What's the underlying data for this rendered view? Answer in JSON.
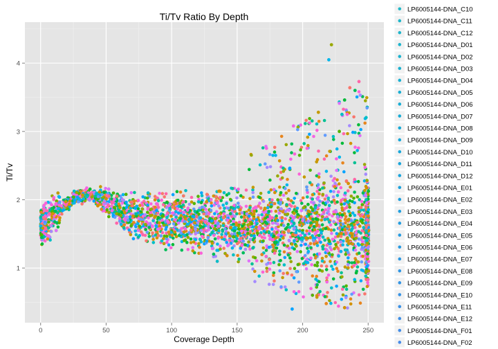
{
  "chart_data": {
    "type": "scatter",
    "title": "Ti/Tv Ratio By Depth",
    "xlabel": "Coverage Depth",
    "ylabel": "Ti/Tv",
    "xlim": [
      -12,
      262
    ],
    "ylim": [
      0.2,
      4.6
    ],
    "x_ticks": [
      0,
      50,
      100,
      150,
      200,
      250
    ],
    "y_ticks": [
      1,
      2,
      3,
      4
    ],
    "grid": true,
    "legend_position": "right",
    "series": [
      {
        "name": "LP6005144-DNA_C10",
        "color": "#22b8c7"
      },
      {
        "name": "LP6005144-DNA_C11",
        "color": "#20b6c9"
      },
      {
        "name": "LP6005144-DNA_C12",
        "color": "#1fb5cb"
      },
      {
        "name": "LP6005144-DNA_D01",
        "color": "#1db4cc"
      },
      {
        "name": "LP6005144-DNA_D02",
        "color": "#1cb2ce"
      },
      {
        "name": "LP6005144-DNA_D03",
        "color": "#1bb1cf"
      },
      {
        "name": "LP6005144-DNA_D04",
        "color": "#1ab0d1"
      },
      {
        "name": "LP6005144-DNA_D05",
        "color": "#1aaed2"
      },
      {
        "name": "LP6005144-DNA_D06",
        "color": "#19add4"
      },
      {
        "name": "LP6005144-DNA_D07",
        "color": "#19abd5"
      },
      {
        "name": "LP6005144-DNA_D08",
        "color": "#19aad6"
      },
      {
        "name": "LP6005144-DNA_D09",
        "color": "#1aa8d8"
      },
      {
        "name": "LP6005144-DNA_D10",
        "color": "#1aa7d9"
      },
      {
        "name": "LP6005144-DNA_D11",
        "color": "#1ba5da"
      },
      {
        "name": "LP6005144-DNA_D12",
        "color": "#1ca4db"
      },
      {
        "name": "LP6005144-DNA_E01",
        "color": "#1ea2dc"
      },
      {
        "name": "LP6005144-DNA_E02",
        "color": "#20a0dd"
      },
      {
        "name": "LP6005144-DNA_E03",
        "color": "#229fde"
      },
      {
        "name": "LP6005144-DNA_E04",
        "color": "#259ddf"
      },
      {
        "name": "LP6005144-DNA_E05",
        "color": "#279be0"
      },
      {
        "name": "LP6005144-DNA_E06",
        "color": "#2a9ae1"
      },
      {
        "name": "LP6005144-DNA_E07",
        "color": "#2d98e2"
      },
      {
        "name": "LP6005144-DNA_E08",
        "color": "#3196e3"
      },
      {
        "name": "LP6005144-DNA_E09",
        "color": "#3494e4"
      },
      {
        "name": "LP6005144-DNA_E10",
        "color": "#3893e4"
      },
      {
        "name": "LP6005144-DNA_E11",
        "color": "#3b91e5"
      },
      {
        "name": "LP6005144-DNA_E12",
        "color": "#3f8fe6"
      },
      {
        "name": "LP6005144-DNA_F01",
        "color": "#438de6"
      },
      {
        "name": "LP6005144-DNA_F02",
        "color": "#478be7"
      }
    ],
    "point_colors": [
      "#f8766d",
      "#e7851e",
      "#c49a00",
      "#99a800",
      "#53b400",
      "#00bc56",
      "#00c094",
      "#00bfc4",
      "#00b6eb",
      "#06a4ff",
      "#a58aff",
      "#df70f8",
      "#fb61d7",
      "#ff66a8",
      "#d39200",
      "#00ba38",
      "#619cff",
      "#f564e3"
    ],
    "annotation_points": [
      {
        "x": 222,
        "y": 4.27
      },
      {
        "x": 220,
        "y": 4.05
      },
      {
        "x": 243,
        "y": 3.73
      },
      {
        "x": 236,
        "y": 3.64
      },
      {
        "x": 240,
        "y": 3.6
      },
      {
        "x": 244,
        "y": 3.53
      },
      {
        "x": 232,
        "y": 3.46
      },
      {
        "x": 212,
        "y": 3.28
      },
      {
        "x": 230,
        "y": 3.25
      },
      {
        "x": 234,
        "y": 3.25
      },
      {
        "x": 193,
        "y": 3.08
      },
      {
        "x": 228,
        "y": 3.0
      },
      {
        "x": 192,
        "y": 0.4
      },
      {
        "x": 232,
        "y": 0.42
      },
      {
        "x": 218,
        "y": 0.48
      }
    ]
  }
}
